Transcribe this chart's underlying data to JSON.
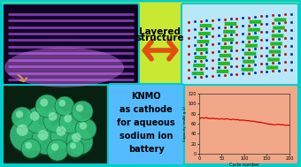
{
  "bg_color": "#c8e832",
  "outer_border_color": "#00cccc",
  "arrow_color": "#e05010",
  "arrow_label_1": "Layered",
  "arrow_label_2": "structure",
  "arrow_label_color": "#000000",
  "arrow_label_fontsize": 7.5,
  "crystal_bg": "#b8e8f8",
  "crystal_border": "#00cccc",
  "knmo_bg": "#55bbff",
  "knmo_border": "#00cccc",
  "knmo_text": "KNMO\nas cathode\nfor aqueous\nsodium ion\nbattery",
  "knmo_text_color": "#000000",
  "knmo_fontsize": 7,
  "plot_bg": "#f0a888",
  "plot_border": "#00cccc",
  "plot_xlabel": "Cycle number",
  "plot_ylabel": "Capacity (mAh g-1)",
  "plot_xlim": [
    0,
    200
  ],
  "plot_ylim": [
    0,
    120
  ],
  "plot_xticks": [
    0,
    50,
    100,
    150,
    200
  ],
  "plot_yticks": [
    0,
    20,
    40,
    60,
    80,
    100,
    120
  ],
  "plot_line_color": "#dd0000",
  "cycle_data_x": [
    1,
    5,
    10,
    15,
    20,
    25,
    30,
    35,
    40,
    45,
    50,
    55,
    60,
    65,
    70,
    75,
    80,
    85,
    90,
    95,
    100,
    105,
    110,
    115,
    120,
    125,
    130,
    135,
    140,
    145,
    150,
    155,
    160,
    165,
    170,
    175,
    180,
    185,
    190,
    195,
    200
  ],
  "cycle_data_y": [
    70,
    72,
    71,
    72,
    71,
    70,
    71,
    70,
    70,
    69,
    70,
    69,
    70,
    69,
    68,
    69,
    68,
    68,
    67,
    67,
    67,
    66,
    66,
    65,
    65,
    64,
    63,
    63,
    62,
    61,
    60,
    59,
    59,
    58,
    58,
    59,
    58,
    58,
    57,
    57,
    57
  ]
}
